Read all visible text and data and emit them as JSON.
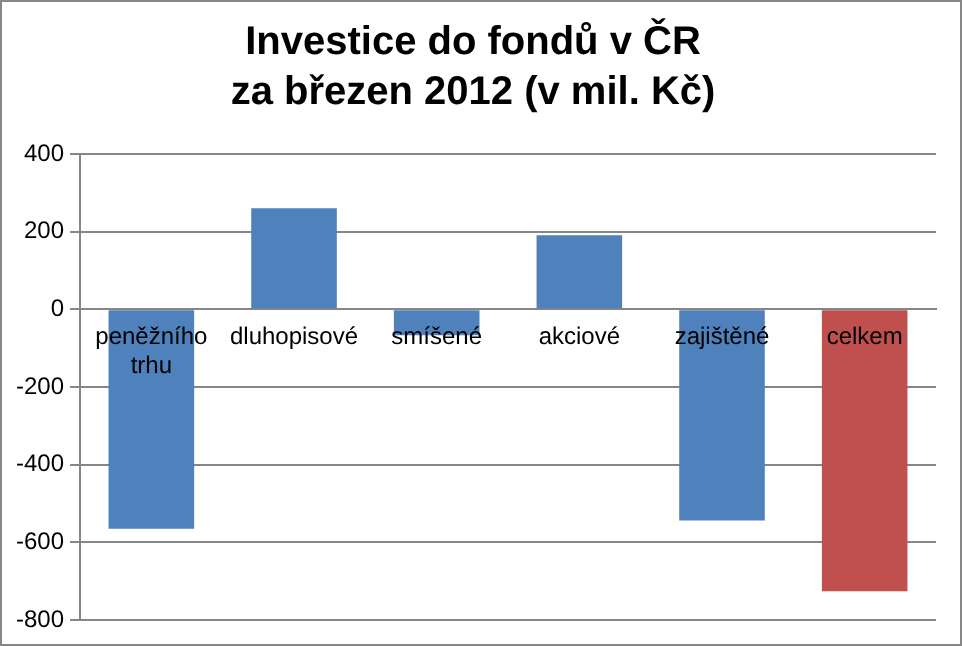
{
  "chart_data": {
    "type": "bar",
    "title": "Investice do fondů v ČR\nza březen 2012 (v mil. Kč)",
    "categories": [
      "peněžního trhu",
      "dluhopisové",
      "smíšené",
      "akciové",
      "zajištěné",
      "celkem"
    ],
    "values": [
      -565,
      260,
      -67,
      191,
      -544,
      -726
    ],
    "colors": [
      "#4f81bd",
      "#4f81bd",
      "#4f81bd",
      "#4f81bd",
      "#4f81bd",
      "#c0504d"
    ],
    "ylim": [
      -800,
      400
    ],
    "yticks": [
      -800,
      -600,
      -400,
      -200,
      0,
      200,
      400
    ],
    "grid": "y",
    "legend": false
  }
}
